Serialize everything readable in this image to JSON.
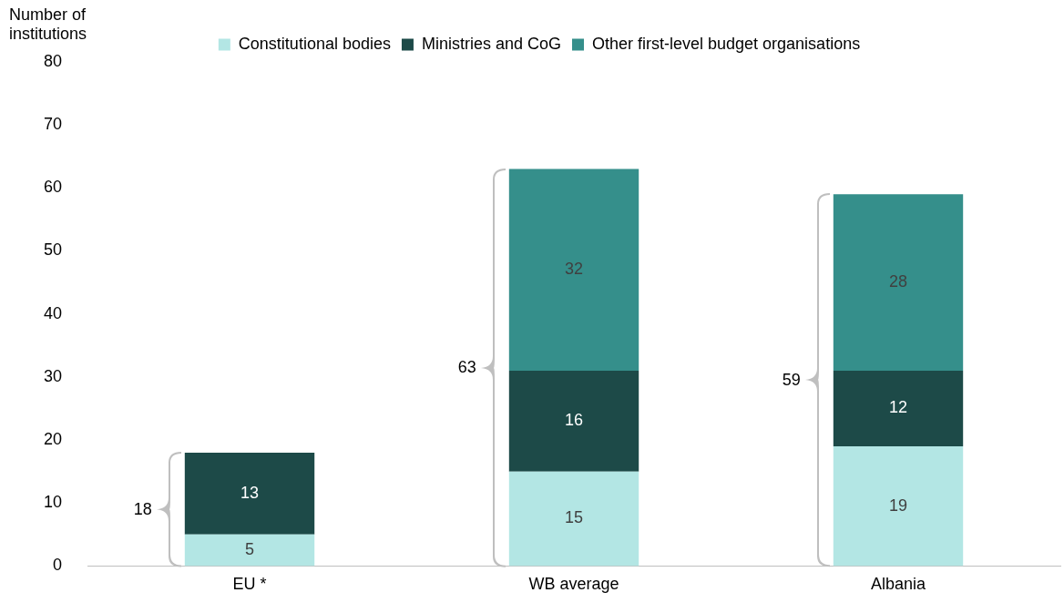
{
  "chart_data": {
    "type": "bar",
    "stacked": true,
    "ylabel": "Number of institutions",
    "categories": [
      "EU *",
      "WB average",
      "Albania"
    ],
    "series": [
      {
        "name": "Constitutional bodies",
        "color": "#b3e6e4",
        "values": [
          5,
          15,
          19
        ]
      },
      {
        "name": "Ministries and CoG",
        "color": "#1d4a48",
        "values": [
          13,
          16,
          12
        ]
      },
      {
        "name": "Other first-level budget organisations",
        "color": "#358f8b",
        "values": [
          null,
          32,
          28
        ]
      }
    ],
    "ylim": [
      0,
      80
    ],
    "yticks": [
      0,
      10,
      20,
      30,
      40,
      50,
      60,
      70,
      80
    ],
    "grid": false,
    "legend": "top",
    "data_labels": true,
    "totals": [
      "18",
      "63",
      "59"
    ]
  }
}
